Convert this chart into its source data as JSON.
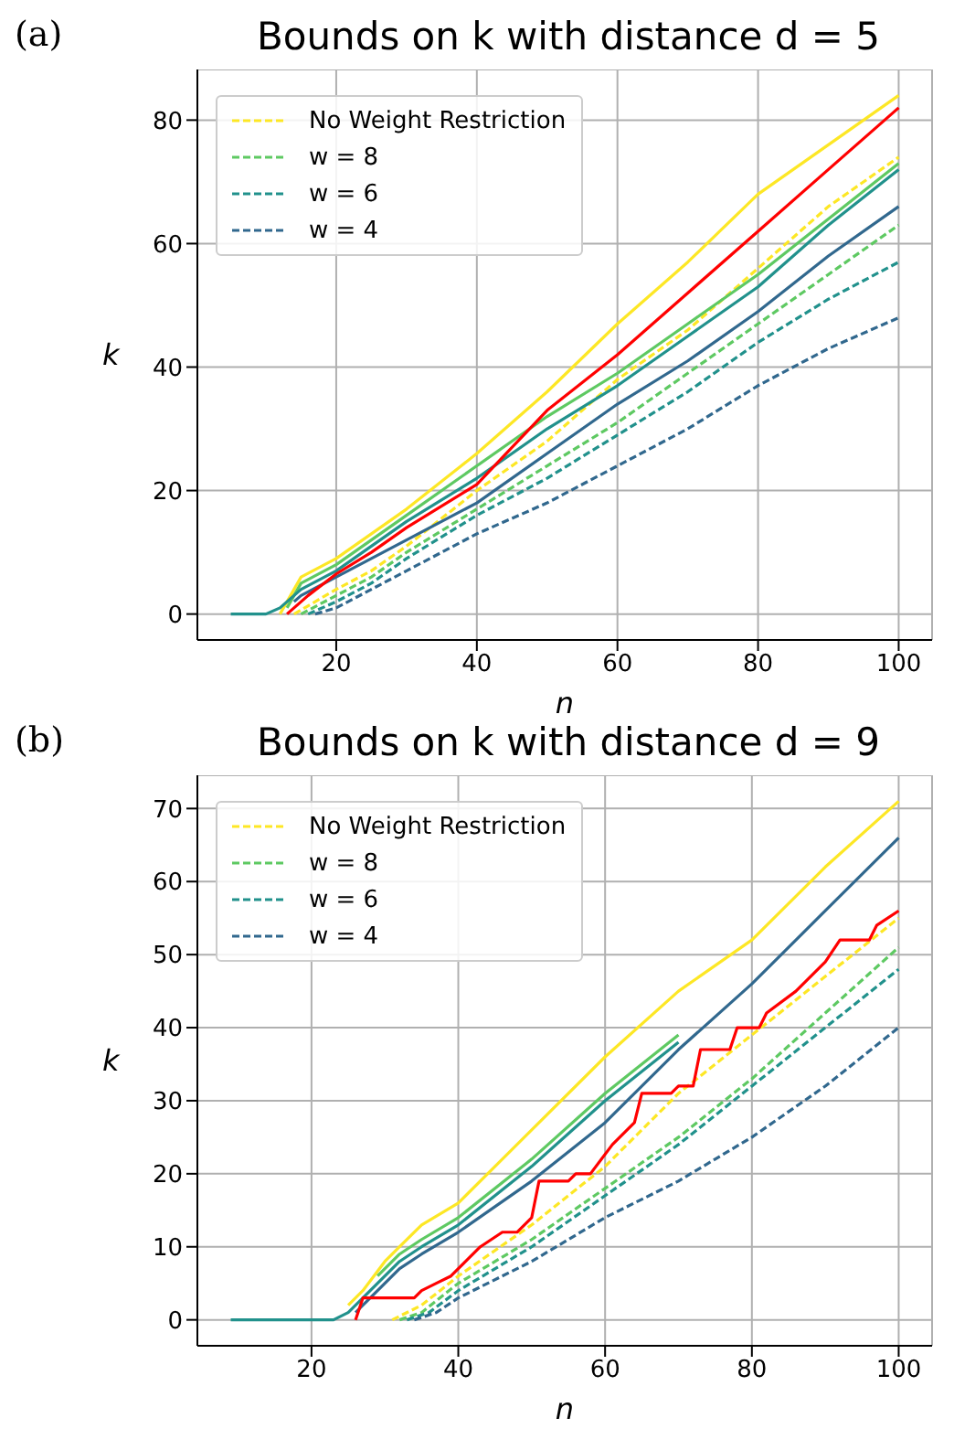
{
  "chart_data": [
    {
      "type": "line",
      "title": "Bounds on k with distance d = 5",
      "xlabel": "n",
      "ylabel": "k",
      "annotations": [
        "(a)"
      ],
      "xlim": [
        0.25,
        104.75
      ],
      "ylim": [
        -4.2,
        88.2
      ],
      "xticks": [
        20,
        40,
        60,
        80,
        100
      ],
      "yticks": [
        0,
        20,
        40,
        60,
        80
      ],
      "grid": true,
      "legend": "top left",
      "marker": "none",
      "series": [
        {
          "name": "No Weight Restriction",
          "color": "#fde725",
          "line_style": "dashed",
          "x": [
            14,
            20,
            25,
            30,
            40,
            50,
            60,
            70,
            80,
            90,
            100
          ],
          "values": [
            0,
            4,
            7,
            11,
            20,
            28,
            38,
            46,
            56,
            66,
            74
          ]
        },
        {
          "name": "w =  8",
          "color": "#5ec962",
          "line_style": "dashed",
          "x": [
            15,
            20,
            25,
            30,
            40,
            50,
            60,
            70,
            80,
            90,
            100
          ],
          "values": [
            0,
            3,
            6,
            10,
            17,
            24,
            31,
            39,
            47,
            55,
            63
          ]
        },
        {
          "name": "w =  6",
          "color": "#21918c",
          "line_style": "dashed",
          "x": [
            16,
            20,
            25,
            30,
            40,
            50,
            60,
            70,
            80,
            90,
            100
          ],
          "values": [
            0,
            2,
            5,
            9,
            16,
            22,
            29,
            36,
            44,
            51,
            57
          ]
        },
        {
          "name": "w =  4",
          "color": "#31688e",
          "line_style": "dashed",
          "x": [
            17,
            20,
            25,
            30,
            40,
            50,
            60,
            70,
            80,
            90,
            100
          ],
          "values": [
            0,
            1,
            4,
            7,
            13,
            18,
            24,
            30,
            37,
            43,
            48
          ]
        },
        {
          "color": "#fde725",
          "line_style": "solid",
          "x": [
            12,
            14,
            15,
            20,
            25,
            30,
            40,
            50,
            60,
            70,
            80,
            90,
            100
          ],
          "values": [
            0,
            4,
            6,
            9,
            13,
            17,
            26,
            36,
            47,
            57,
            68,
            76,
            84
          ]
        },
        {
          "color": "#5ec962",
          "line_style": "solid",
          "x": [
            13,
            15,
            20,
            25,
            30,
            40,
            50,
            60,
            70,
            80,
            90,
            100
          ],
          "values": [
            1,
            5,
            8,
            12,
            16,
            24,
            32,
            39,
            47,
            55,
            64,
            73
          ]
        },
        {
          "color": "#21918c",
          "line_style": "solid",
          "x": [
            5,
            10,
            12,
            13,
            15,
            20,
            25,
            30,
            40,
            50,
            60,
            70,
            80,
            90,
            100
          ],
          "values": [
            0,
            0,
            1,
            2,
            4,
            7,
            11,
            15,
            22,
            30,
            37,
            45,
            53,
            63,
            72
          ]
        },
        {
          "color": "#31688e",
          "line_style": "solid",
          "x": [
            14,
            15,
            20,
            25,
            30,
            40,
            50,
            60,
            70,
            80,
            90,
            100
          ],
          "values": [
            2,
            3,
            6,
            9,
            12,
            18,
            26,
            34,
            41,
            49,
            58,
            66
          ]
        },
        {
          "color": "#ff0000",
          "line_style": "solid",
          "x": [
            13,
            16,
            20,
            25,
            30,
            40,
            50,
            60,
            70,
            80,
            90,
            100
          ],
          "values": [
            0,
            3,
            6.5,
            10,
            14,
            21,
            33,
            42,
            52,
            62,
            72,
            82
          ]
        }
      ]
    },
    {
      "type": "line",
      "title": "Bounds on k with distance d = 9",
      "xlabel": "n",
      "ylabel": "k",
      "annotations": [
        "(b)"
      ],
      "xlim": [
        4.45,
        104.55
      ],
      "ylim": [
        -3.55,
        74.55
      ],
      "xticks": [
        20,
        40,
        60,
        80,
        100
      ],
      "yticks": [
        0,
        10,
        20,
        30,
        40,
        50,
        60,
        70
      ],
      "grid": true,
      "legend": "top left",
      "marker": "none",
      "series": [
        {
          "name": "No Weight Restriction",
          "color": "#fde725",
          "line_style": "dashed",
          "x": [
            31,
            35,
            40,
            50,
            60,
            70,
            80,
            90,
            100
          ],
          "values": [
            0,
            2,
            6,
            13,
            21,
            31,
            39,
            47,
            55
          ]
        },
        {
          "name": "w =  8",
          "color": "#5ec962",
          "line_style": "dashed",
          "x": [
            32,
            35,
            40,
            50,
            60,
            70,
            80,
            90,
            100
          ],
          "values": [
            0,
            1,
            5,
            11,
            18,
            25,
            33,
            42,
            51
          ]
        },
        {
          "name": "w =  6",
          "color": "#21918c",
          "line_style": "dashed",
          "x": [
            33,
            36,
            40,
            50,
            60,
            70,
            80,
            90,
            100
          ],
          "values": [
            0,
            1,
            4,
            10,
            17,
            24,
            32,
            40,
            48
          ]
        },
        {
          "name": "w =  4",
          "color": "#31688e",
          "line_style": "dashed",
          "x": [
            34,
            37,
            40,
            50,
            60,
            70,
            80,
            90,
            100
          ],
          "values": [
            0,
            1,
            3,
            8,
            14,
            19,
            25,
            32,
            40
          ]
        },
        {
          "color": "#fde725",
          "line_style": "solid",
          "x": [
            25,
            27,
            30,
            32,
            35,
            40,
            50,
            60,
            70,
            80,
            90,
            100
          ],
          "values": [
            2,
            4,
            8,
            10,
            13,
            16,
            26,
            36,
            45,
            52,
            62,
            71
          ]
        },
        {
          "color": "#5ec962",
          "line_style": "solid",
          "x": [
            29,
            32,
            35,
            40,
            50,
            60,
            70
          ],
          "values": [
            6,
            9,
            11,
            14,
            22,
            31,
            39
          ]
        },
        {
          "color": "#21918c",
          "line_style": "solid",
          "x": [
            9,
            20,
            23,
            25,
            27,
            30,
            32,
            35,
            40,
            50,
            60,
            70
          ],
          "values": [
            0,
            0,
            0,
            1,
            3,
            6,
            8,
            10,
            13,
            21,
            30,
            38
          ]
        },
        {
          "color": "#31688e",
          "line_style": "solid",
          "x": [
            26,
            30,
            32,
            35,
            40,
            50,
            60,
            70,
            80,
            90,
            100
          ],
          "values": [
            1,
            5,
            7,
            9,
            12,
            19,
            27,
            37,
            46,
            56,
            66
          ]
        },
        {
          "color": "#ff0000",
          "line_style": "solid",
          "x": [
            26,
            27,
            34,
            35,
            37,
            39,
            41,
            43,
            46,
            48,
            50,
            51,
            55,
            56,
            58,
            61,
            64,
            65,
            69,
            70,
            72,
            73,
            77,
            78,
            81,
            82,
            86,
            90,
            92,
            96,
            97,
            100
          ],
          "values": [
            0,
            3,
            3,
            4,
            5,
            6,
            8,
            10,
            12,
            12,
            14,
            19,
            19,
            20,
            20,
            24,
            27,
            31,
            31,
            32,
            32,
            37,
            37,
            40,
            40,
            42,
            45,
            49,
            52,
            52,
            54,
            56
          ]
        }
      ]
    }
  ]
}
